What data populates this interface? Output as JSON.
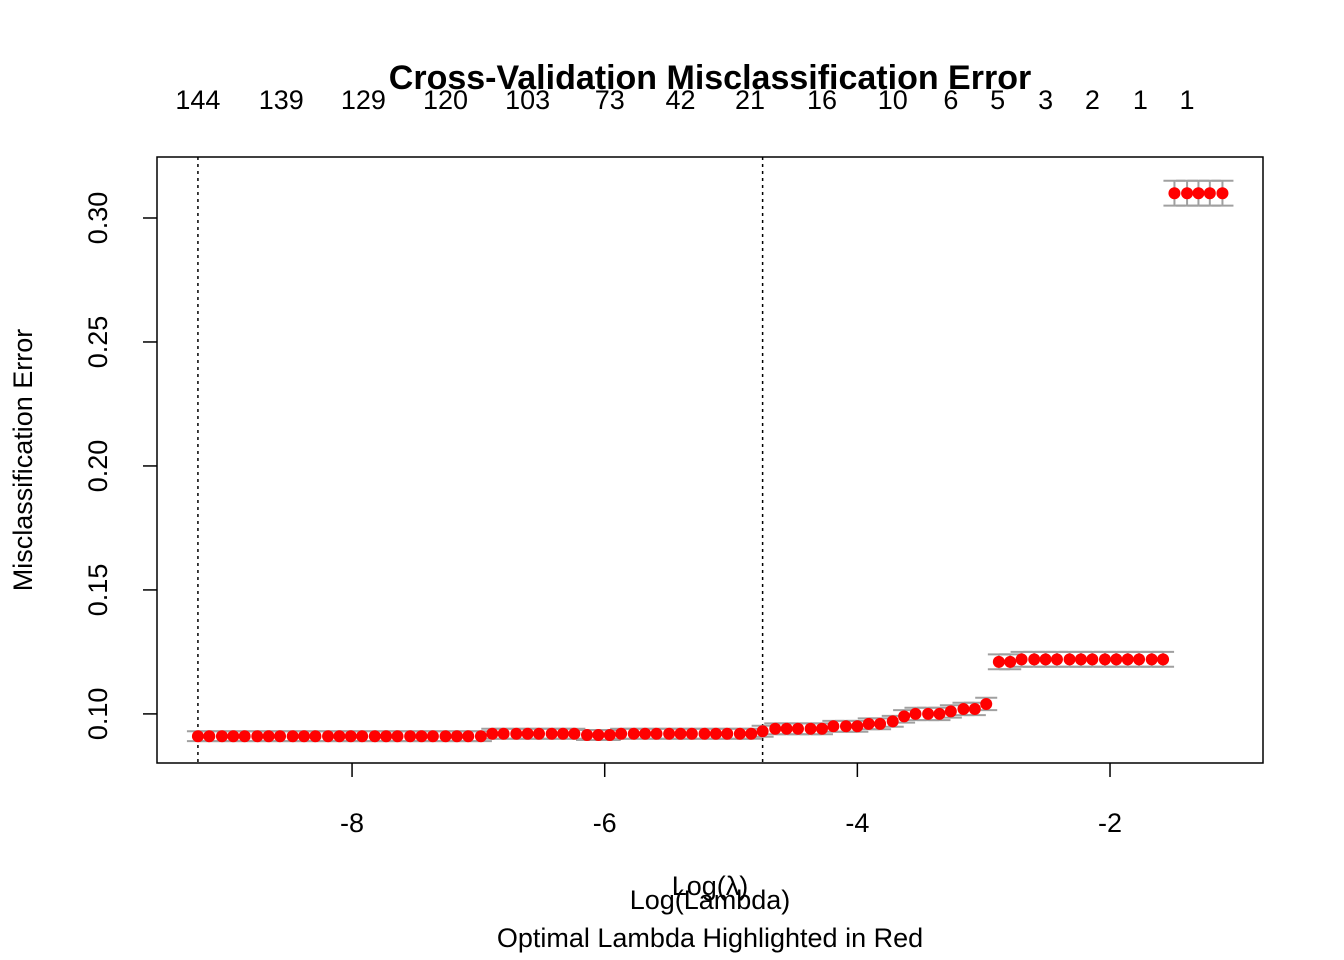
{
  "chart_data": {
    "type": "errorbar",
    "title": "Cross-Validation Misclassification Error",
    "xlabel": "Log(λ)",
    "xlabel2": "Log(Lambda)",
    "subtitle": "Optimal Lambda Highlighted in Red",
    "ylabel": "Misclassification Error",
    "xlim": [
      -9.544,
      -0.789
    ],
    "ylim": [
      0.0802,
      0.3246
    ],
    "xticks": [
      -8,
      -6,
      -4,
      -2
    ],
    "yticks": [
      {
        "value": 0.1,
        "label": "0.10"
      },
      0.15,
      {
        "value": 0.2,
        "label": "0.20"
      },
      0.25,
      {
        "value": 0.3,
        "label": "0.30"
      }
    ],
    "top_x": [
      -9.22,
      -8.56,
      -7.91,
      -7.26,
      -6.61,
      -5.96,
      -5.4,
      -4.85,
      -4.28,
      -3.72,
      -3.26,
      -2.89,
      -2.51,
      -2.14,
      -1.76,
      -1.39
    ],
    "top_labels": [
      144,
      139,
      129,
      120,
      103,
      73,
      42,
      21,
      16,
      10,
      6,
      5,
      3,
      2,
      1,
      1
    ],
    "vlines": [
      -9.22,
      -4.75
    ],
    "color": "#ff0000",
    "error_color": "#a0a0a0",
    "x": [
      -9.22,
      -9.13,
      -9.03,
      -8.94,
      -8.85,
      -8.75,
      -8.66,
      -8.57,
      -8.47,
      -8.38,
      -8.29,
      -8.19,
      -8.1,
      -8.01,
      -7.92,
      -7.82,
      -7.73,
      -7.64,
      -7.54,
      -7.45,
      -7.36,
      -7.26,
      -7.17,
      -7.08,
      -6.98,
      -6.89,
      -6.8,
      -6.7,
      -6.61,
      -6.52,
      -6.42,
      -6.33,
      -6.24,
      -6.14,
      -6.05,
      -5.96,
      -5.87,
      -5.77,
      -5.68,
      -5.59,
      -5.49,
      -5.4,
      -5.31,
      -5.21,
      -5.12,
      -5.03,
      -4.93,
      -4.84,
      -4.75,
      -4.65,
      -4.56,
      -4.47,
      -4.37,
      -4.28,
      -4.19,
      -4.09,
      -4.0,
      -3.91,
      -3.82,
      -3.72,
      -3.63,
      -3.54,
      -3.44,
      -3.35,
      -3.26,
      -3.16,
      -3.07,
      -2.98,
      -2.88,
      -2.79,
      -2.7,
      -2.6,
      -2.51,
      -2.42,
      -2.32,
      -2.23,
      -2.14,
      -2.04,
      -1.95,
      -1.86,
      -1.77,
      -1.67,
      -1.58,
      -1.49,
      -1.39,
      -1.3,
      -1.21,
      -1.11
    ],
    "values": [
      0.091,
      0.091,
      0.091,
      0.091,
      0.091,
      0.091,
      0.091,
      0.091,
      0.091,
      0.091,
      0.091,
      0.091,
      0.091,
      0.091,
      0.091,
      0.091,
      0.091,
      0.091,
      0.091,
      0.091,
      0.091,
      0.091,
      0.091,
      0.091,
      0.091,
      0.092,
      0.092,
      0.092,
      0.092,
      0.092,
      0.092,
      0.092,
      0.092,
      0.0915,
      0.0915,
      0.0915,
      0.092,
      0.092,
      0.092,
      0.092,
      0.092,
      0.092,
      0.092,
      0.092,
      0.092,
      0.092,
      0.092,
      0.092,
      0.093,
      0.094,
      0.094,
      0.094,
      0.094,
      0.094,
      0.095,
      0.095,
      0.095,
      0.096,
      0.096,
      0.097,
      0.099,
      0.1,
      0.1,
      0.1,
      0.101,
      0.102,
      0.102,
      0.104,
      0.121,
      0.121,
      0.122,
      0.122,
      0.122,
      0.122,
      0.122,
      0.122,
      0.122,
      0.122,
      0.122,
      0.122,
      0.122,
      0.122,
      0.122,
      0.31,
      0.31,
      0.31,
      0.31,
      0.31
    ],
    "errors": [
      0.002,
      0.002,
      0.002,
      0.002,
      0.002,
      0.002,
      0.002,
      0.002,
      0.002,
      0.002,
      0.002,
      0.002,
      0.002,
      0.002,
      0.002,
      0.002,
      0.002,
      0.002,
      0.002,
      0.002,
      0.002,
      0.002,
      0.002,
      0.002,
      0.002,
      0.002,
      0.002,
      0.002,
      0.002,
      0.002,
      0.002,
      0.002,
      0.002,
      0.002,
      0.002,
      0.002,
      0.002,
      0.002,
      0.002,
      0.002,
      0.002,
      0.002,
      0.002,
      0.002,
      0.002,
      0.002,
      0.002,
      0.002,
      0.0022,
      0.0022,
      0.0022,
      0.0022,
      0.0022,
      0.0022,
      0.0022,
      0.0022,
      0.0022,
      0.0022,
      0.0022,
      0.0022,
      0.0025,
      0.0025,
      0.0025,
      0.0025,
      0.0025,
      0.0025,
      0.0025,
      0.0025,
      0.003,
      0.003,
      0.003,
      0.003,
      0.003,
      0.003,
      0.003,
      0.003,
      0.003,
      0.003,
      0.003,
      0.003,
      0.003,
      0.003,
      0.003,
      0.005,
      0.005,
      0.005,
      0.005,
      0.005
    ]
  }
}
